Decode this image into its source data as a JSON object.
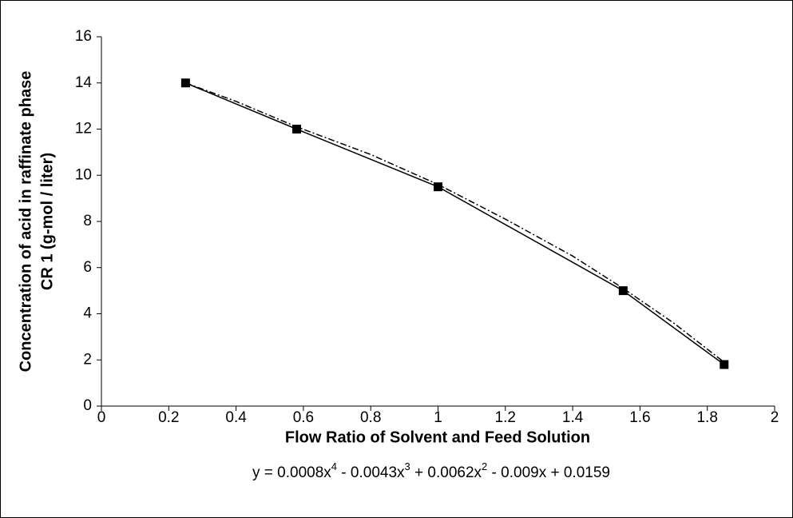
{
  "chart_data": {
    "type": "line",
    "x_label": "Flow Ratio of Solvent and Feed Solution",
    "y_label": [
      "Concentration of acid in raffinate phase",
      "CR 1 (g-mol / liter)"
    ],
    "equation": [
      "y = 0.0008x",
      "4",
      " - 0.0043x",
      "3",
      " + 0.0062x",
      "2",
      " - 0.009x + 0.0159"
    ],
    "series": [
      {
        "color": "#000000",
        "marker": "square",
        "dash": "none",
        "x": [
          0.25,
          0.58,
          1.0,
          1.55,
          1.85
        ],
        "values": [
          14,
          12,
          9.5,
          5.0,
          1.8
        ]
      },
      {
        "color": "#000000",
        "marker": "none",
        "dash": "8 3 2 3",
        "x": [
          0.25,
          0.4,
          0.58,
          0.8,
          1.0,
          1.2,
          1.4,
          1.55,
          1.7,
          1.85
        ],
        "values": [
          14,
          13.2,
          12.1,
          10.9,
          9.6,
          8.1,
          6.5,
          5.1,
          3.6,
          1.9
        ]
      }
    ],
    "xlim": [
      0,
      2
    ],
    "xticks": [
      0,
      0.2,
      0.4,
      0.6,
      0.8,
      1,
      1.2,
      1.4,
      1.6,
      1.8,
      2
    ],
    "ylim": [
      0,
      16
    ],
    "yticks": [
      0,
      2,
      4,
      6,
      8,
      10,
      12,
      14,
      16
    ],
    "grid": false
  }
}
